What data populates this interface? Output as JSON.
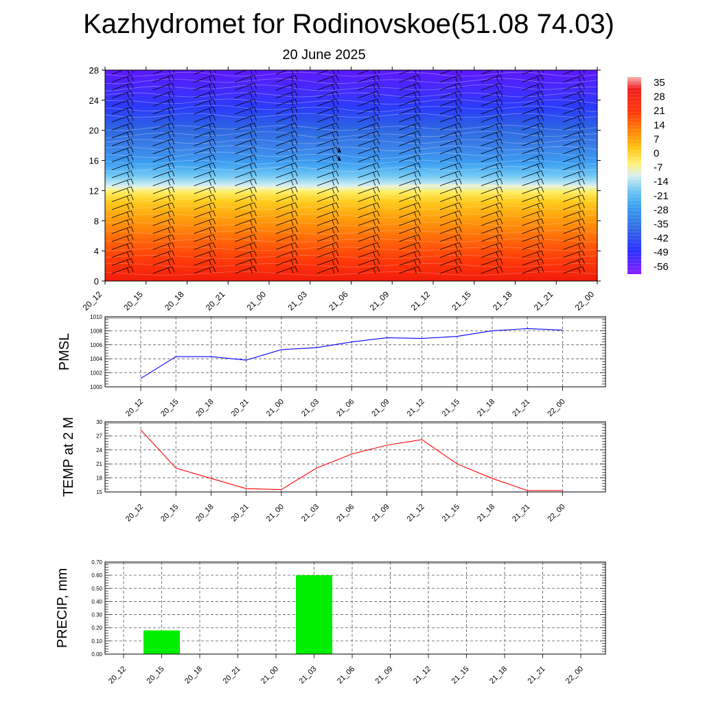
{
  "header": {
    "title": "Kazhydromet for Rodinovskoe(51.08 74.03)",
    "subtitle": "20 June 2025"
  },
  "chart_data": [
    {
      "type": "heatmap",
      "description_kind": "time-height temperature cross-section with wind barbs",
      "x_ticks": [
        "20_12",
        "20_15",
        "20_18",
        "20_21",
        "21_00",
        "21_03",
        "21_06",
        "21_09",
        "21_12",
        "21_15",
        "21_18",
        "21_21",
        "22_00"
      ],
      "y_ticks": [
        0,
        4,
        8,
        12,
        16,
        20,
        24,
        28
      ],
      "ylim": [
        0,
        28
      ],
      "colorbar_labels": [
        35,
        28,
        21,
        14,
        7,
        0,
        -7,
        -14,
        -21,
        -28,
        -35,
        -42,
        -49,
        -56
      ],
      "color_stops": [
        {
          "level": -56,
          "color": "#6a10ff"
        },
        {
          "level": -49,
          "color": "#2a30ff"
        },
        {
          "level": -42,
          "color": "#2f6ae6"
        },
        {
          "level": -35,
          "color": "#3a8cf0"
        },
        {
          "level": -28,
          "color": "#42a8f5"
        },
        {
          "level": -21,
          "color": "#7fd0f5"
        },
        {
          "level": -14,
          "color": "#d8f0f0"
        },
        {
          "level": -7,
          "color": "#fff27a"
        },
        {
          "level": 0,
          "color": "#ffd21e"
        },
        {
          "level": 7,
          "color": "#ffaa0a"
        },
        {
          "level": 14,
          "color": "#ff7a0a"
        },
        {
          "level": 21,
          "color": "#ff3a0a"
        },
        {
          "level": 28,
          "color": "#e61a0a"
        },
        {
          "level": 35,
          "color": "#f0a8a8"
        }
      ],
      "freezing_level_km": [
        12.2,
        12.3,
        12.4,
        12.4,
        12.3,
        12.2,
        12.3,
        12.6,
        12.7,
        12.7,
        12.6,
        12.6,
        12.5
      ]
    },
    {
      "type": "line",
      "ylabel": "PMSL",
      "x": [
        "20_12",
        "20_15",
        "20_18",
        "20_21",
        "21_00",
        "21_03",
        "21_06",
        "21_09",
        "21_12",
        "21_15",
        "21_18",
        "21_21",
        "22_00"
      ],
      "y_ticks": [
        1000,
        1002,
        1004,
        1006,
        1008,
        1010
      ],
      "ylim": [
        1000,
        1010
      ],
      "color": "#0000ff",
      "series": [
        {
          "values": [
            1001.2,
            1004.3,
            1004.3,
            1003.8,
            1005.3,
            1005.6,
            1006.4,
            1007.0,
            1006.9,
            1007.2,
            1008.0,
            1008.3,
            1008.1
          ]
        }
      ]
    },
    {
      "type": "line",
      "ylabel": "TEMP at 2 M",
      "x": [
        "20_12",
        "20_15",
        "20_18",
        "20_21",
        "21_00",
        "21_03",
        "21_06",
        "21_09",
        "21_12",
        "21_15",
        "21_18",
        "21_21",
        "22_00"
      ],
      "y_ticks": [
        15,
        18,
        21,
        24,
        27,
        30
      ],
      "ylim": [
        15,
        30
      ],
      "color": "#ff0000",
      "series": [
        {
          "values": [
            28.3,
            20.1,
            17.9,
            15.7,
            15.5,
            20.1,
            23.1,
            25.0,
            26.2,
            21.0,
            17.9,
            15.3,
            15.3
          ]
        }
      ]
    },
    {
      "type": "bar",
      "ylabel": "PRECIP, mm",
      "categories": [
        "20_12",
        "20_15",
        "20_18",
        "20_21",
        "21_00",
        "21_03",
        "21_06",
        "21_09",
        "21_12",
        "21_15",
        "21_18",
        "21_21",
        "22_00"
      ],
      "y_ticks": [
        "0.00",
        "0.10",
        "0.20",
        "0.30",
        "0.40",
        "0.50",
        "0.60",
        "0.70"
      ],
      "ylim": [
        0,
        0.7
      ],
      "color": "#00ee00",
      "values": [
        0,
        0.18,
        0,
        0,
        0,
        0.6,
        0,
        0,
        0,
        0,
        0,
        0,
        0
      ]
    }
  ]
}
